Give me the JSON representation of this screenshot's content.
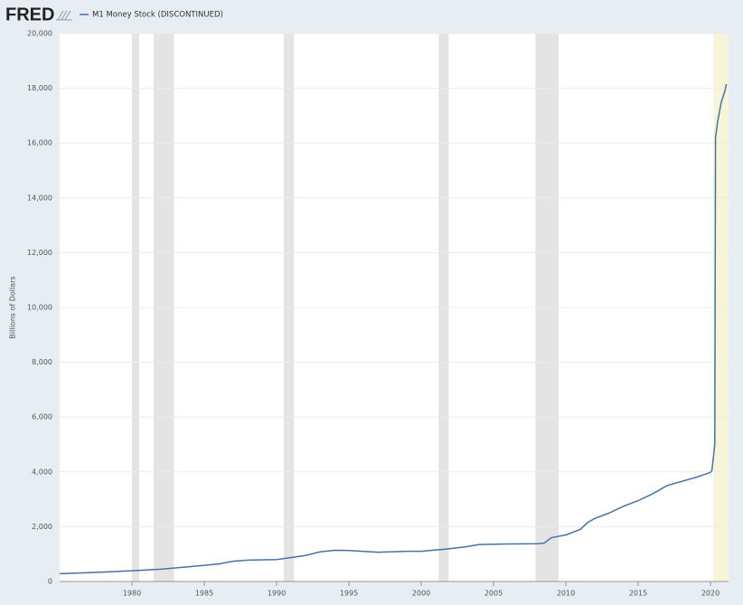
{
  "logo": "FRED",
  "chart_data": {
    "type": "line",
    "y_label": "Billions of Dollars",
    "series": [
      {
        "name": "M1 Money Stock (DISCONTINUED)",
        "color": "#4572a7",
        "x": [
          1975,
          1977,
          1980,
          1982,
          1984,
          1986,
          1987,
          1988,
          1990,
          1992,
          1993,
          1994,
          1995,
          1997,
          1999,
          2000,
          2001,
          2001.7,
          2002,
          2003,
          2004,
          2006,
          2008,
          2008.5,
          2009,
          2010,
          2011,
          2011.5,
          2012,
          2013,
          2014,
          2015,
          2016,
          2017,
          2018,
          2019,
          2020,
          2020.1,
          2020.3,
          2020.35,
          2020.5,
          2020.75,
          2021,
          2021.1
        ],
        "values": [
          285,
          320,
          390,
          450,
          540,
          640,
          740,
          780,
          800,
          950,
          1080,
          1140,
          1130,
          1070,
          1100,
          1100,
          1150,
          1180,
          1200,
          1260,
          1350,
          1370,
          1380,
          1400,
          1600,
          1700,
          1900,
          2150,
          2300,
          2500,
          2750,
          2950,
          3200,
          3500,
          3650,
          3800,
          3980,
          4050,
          5000,
          16200,
          16800,
          17500,
          17900,
          18150
        ]
      }
    ],
    "shading": [
      {
        "x": [
          1980,
          1980.5
        ],
        "color": "#e4e4e4"
      },
      {
        "x": [
          1981.5,
          1982.9
        ],
        "color": "#e4e4e4"
      },
      {
        "x": [
          1990.5,
          1991.2
        ],
        "color": "#e4e4e4"
      },
      {
        "x": [
          2001.2,
          2001.9
        ],
        "color": "#e4e4e4"
      },
      {
        "x": [
          2007.9,
          2009.5
        ],
        "color": "#e4e4e4"
      },
      {
        "x": [
          2020.2,
          2021.25
        ],
        "color": "#f7f5d8"
      }
    ],
    "xlim": [
      1975,
      2021.25
    ],
    "xticks": [
      1980,
      1985,
      1990,
      1995,
      2000,
      2005,
      2010,
      2015,
      2020
    ],
    "ylim": [
      0,
      20000
    ],
    "yticks": [
      0,
      {
        "value": 2000,
        "label": "2,000"
      },
      {
        "value": 4000,
        "label": "4,000"
      },
      {
        "value": 6000,
        "label": "6,000"
      },
      {
        "value": 8000,
        "label": "8,000"
      },
      {
        "value": 10000,
        "label": "10,000"
      },
      {
        "value": 12000,
        "label": "12,000"
      },
      {
        "value": 14000,
        "label": "14,000"
      },
      {
        "value": 16000,
        "label": "16,000"
      },
      {
        "value": 18000,
        "label": "18,000"
      },
      {
        "value": 20000,
        "label": "20,000"
      }
    ],
    "grid": true
  }
}
